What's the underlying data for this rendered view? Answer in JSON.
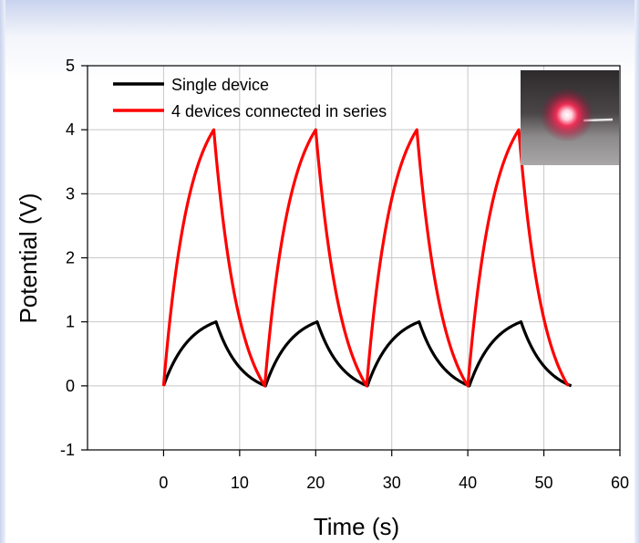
{
  "chart_data": {
    "type": "line",
    "title": "",
    "xlabel": "Time (s)",
    "ylabel": "Potential (V)",
    "xlim": [
      -10,
      60
    ],
    "ylim": [
      -1,
      5
    ],
    "x_ticks": [
      0,
      10,
      20,
      30,
      40,
      50,
      60
    ],
    "y_ticks": [
      -1,
      0,
      1,
      2,
      3,
      4,
      5
    ],
    "grid": true,
    "legend_position": "top-left",
    "inset": "photo of glowing red LED",
    "series": [
      {
        "name": "Single device",
        "color": "#000000",
        "cycles": [
          {
            "start": 0,
            "peak_time": 6.9,
            "end": 13.4
          },
          {
            "start": 13.4,
            "peak_time": 20.2,
            "end": 26.8
          },
          {
            "start": 26.8,
            "peak_time": 33.6,
            "end": 40.2
          },
          {
            "start": 40.2,
            "peak_time": 47.0,
            "end": 53.6
          }
        ],
        "min": 0,
        "max": 1
      },
      {
        "name": "4 devices connected in series",
        "color": "#ff0000",
        "cycles": [
          {
            "start": 0,
            "peak_time": 6.6,
            "end": 13.3
          },
          {
            "start": 13.3,
            "peak_time": 20.0,
            "end": 26.7
          },
          {
            "start": 26.7,
            "peak_time": 33.3,
            "end": 40.0
          },
          {
            "start": 40.0,
            "peak_time": 46.7,
            "end": 53.2
          }
        ],
        "min": 0,
        "max": 4
      }
    ]
  }
}
